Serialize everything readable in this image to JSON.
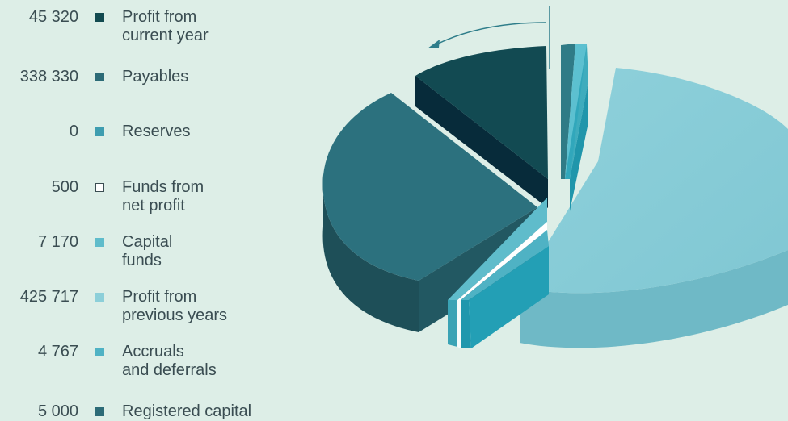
{
  "chart_data": {
    "type": "pie",
    "title": "",
    "items": [
      {
        "value": "45 320",
        "label": "Profit from\ncurrent year",
        "color": "#124a50"
      },
      {
        "value": "338 330",
        "label": "Payables",
        "color": "#2c6b77"
      },
      {
        "value": "0",
        "label": "Reserves",
        "color": "#3e9db0"
      },
      {
        "value": "500",
        "label": "Funds from\nnet profit",
        "color": "#ffffff"
      },
      {
        "value": "7 170",
        "label": "Capital\nfunds",
        "color": "#5fbccb"
      },
      {
        "value": "425 717",
        "label": "Profit from\nprevious years",
        "color": "#8ccfd9"
      },
      {
        "value": "4 767",
        "label": "Accruals\nand deferrals",
        "color": "#4fb2c4"
      },
      {
        "value": "5 000",
        "label": "Registered capital",
        "color": "#2c6b77"
      }
    ],
    "values": [
      45320,
      338330,
      0,
      500,
      7170,
      425717,
      4767,
      5000
    ]
  }
}
